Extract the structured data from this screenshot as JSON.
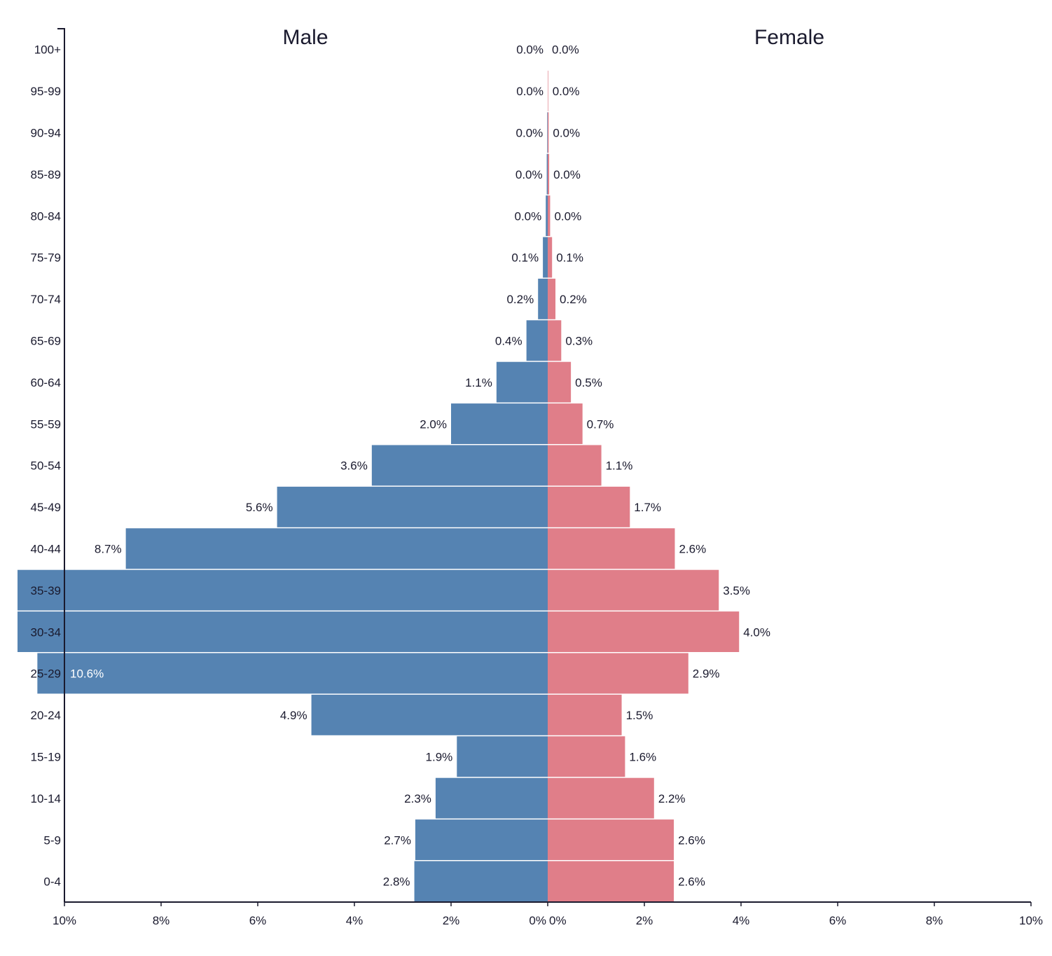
{
  "chart_data": {
    "type": "bar",
    "orientation": "horizontal-population-pyramid",
    "categories": [
      "100+",
      "95-99",
      "90-94",
      "85-89",
      "80-84",
      "75-79",
      "70-74",
      "65-69",
      "60-64",
      "55-59",
      "50-54",
      "45-49",
      "40-44",
      "35-39",
      "30-34",
      "25-29",
      "20-24",
      "15-19",
      "10-14",
      "5-9",
      "0-4"
    ],
    "series": [
      {
        "name": "Male",
        "color": "#5583b2",
        "values": [
          0.0,
          0.0,
          0.01,
          0.02,
          0.04,
          0.1,
          0.2,
          0.44,
          1.06,
          2.0,
          3.64,
          5.6,
          8.73,
          12.0,
          12.0,
          10.56,
          4.89,
          1.88,
          2.32,
          2.74,
          2.76
        ],
        "labels": [
          "0.0%",
          "0.0%",
          "0.0%",
          "0.0%",
          "0.0%",
          "0.1%",
          "0.2%",
          "0.4%",
          "1.1%",
          "2.0%",
          "3.6%",
          "5.6%",
          "8.7%",
          "",
          "",
          "10.6%",
          "4.9%",
          "1.9%",
          "2.3%",
          "2.7%",
          "2.8%"
        ]
      },
      {
        "name": "Female",
        "color": "#e07e89",
        "values": [
          0.0,
          0.01,
          0.02,
          0.03,
          0.05,
          0.09,
          0.16,
          0.28,
          0.48,
          0.72,
          1.11,
          1.7,
          2.63,
          3.54,
          3.96,
          2.91,
          1.53,
          1.6,
          2.2,
          2.61,
          2.61
        ],
        "labels": [
          "0.0%",
          "0.0%",
          "0.0%",
          "0.0%",
          "0.0%",
          "0.1%",
          "0.2%",
          "0.3%",
          "0.5%",
          "0.7%",
          "1.1%",
          "1.7%",
          "2.6%",
          "3.5%",
          "4.0%",
          "2.9%",
          "1.5%",
          "1.6%",
          "2.2%",
          "2.6%",
          "2.6%"
        ]
      }
    ],
    "x_tick_labels_male": [
      "10%",
      "8%",
      "6%",
      "4%",
      "2%",
      "0%"
    ],
    "x_tick_labels_female": [
      "0%",
      "2%",
      "4%",
      "6%",
      "8%",
      "10%"
    ],
    "xlim": [
      -10,
      10
    ],
    "grid": false,
    "side_titles": {
      "male": "Male",
      "female": "Female"
    }
  }
}
